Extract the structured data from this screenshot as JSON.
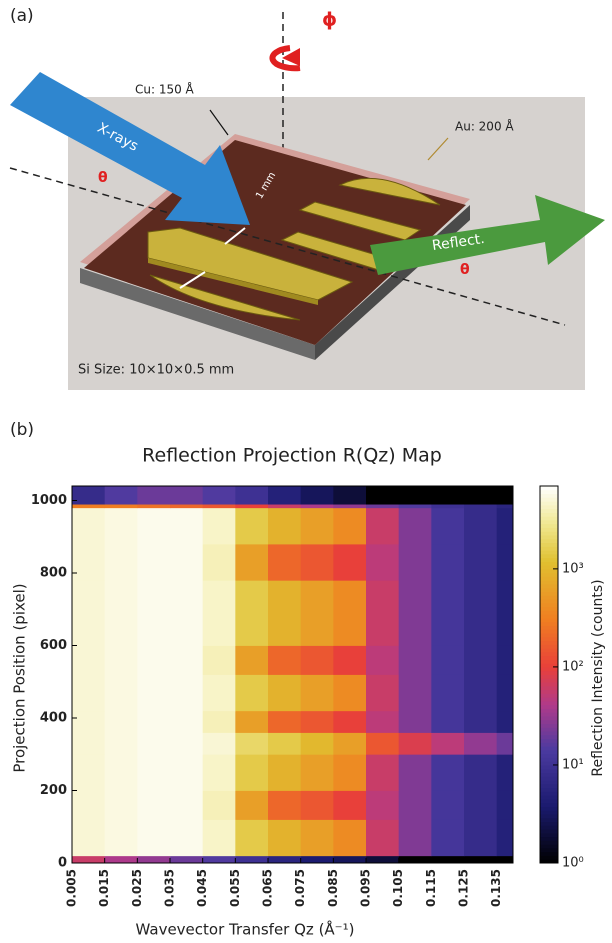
{
  "panel_a": {
    "label": "(a)",
    "phi": "ϕ",
    "cu": "Cu: 150 Å",
    "au": "Au: 200 Å",
    "xrays": "X-rays",
    "reflect": "Reflect.",
    "mm": "1 mm",
    "theta_in": "θ",
    "theta_out": "θ",
    "si_size": "Si Size: 10×10×0.5 mm"
  },
  "chart_data": {
    "type": "heatmap",
    "panel_label": "(b)",
    "title": "Reflection Projection R(Qz) Map",
    "x_label": "Wavevector Transfer Qz (Å⁻¹)",
    "y_label": "Projection Position (pixel)",
    "colorbar_label": "Reflection Intensity (counts)",
    "log_color": true,
    "x_edges": [
      0.005,
      0.015,
      0.025,
      0.035,
      0.045,
      0.055,
      0.065,
      0.075,
      0.085,
      0.095,
      0.105,
      0.115,
      0.125,
      0.135,
      0.14
    ],
    "y_edges": [
      0,
      20,
      120,
      200,
      300,
      360,
      420,
      520,
      600,
      780,
      880,
      980,
      990,
      1040
    ],
    "z": [
      [
        60,
        40,
        30,
        20,
        15,
        10,
        6,
        4,
        3,
        2,
        1,
        1,
        1,
        1
      ],
      [
        5000,
        5500,
        6000,
        6000,
        4500,
        1500,
        900,
        600,
        400,
        60,
        25,
        12,
        8,
        5
      ],
      [
        5000,
        5500,
        6000,
        6000,
        4000,
        600,
        200,
        150,
        100,
        50,
        25,
        12,
        8,
        5
      ],
      [
        5000,
        5500,
        6000,
        6000,
        4500,
        1500,
        900,
        600,
        400,
        60,
        25,
        12,
        8,
        5
      ],
      [
        5000,
        5500,
        6000,
        6000,
        5000,
        2000,
        1500,
        1000,
        600,
        150,
        80,
        50,
        30,
        20
      ],
      [
        5000,
        5500,
        6000,
        6000,
        4000,
        600,
        200,
        150,
        100,
        50,
        25,
        12,
        8,
        5
      ],
      [
        5000,
        5500,
        6000,
        6000,
        4500,
        1500,
        900,
        600,
        400,
        60,
        25,
        12,
        8,
        5
      ],
      [
        5000,
        5500,
        6000,
        6000,
        4000,
        600,
        200,
        150,
        100,
        50,
        25,
        12,
        8,
        5
      ],
      [
        5000,
        5500,
        6000,
        6000,
        4500,
        1500,
        900,
        600,
        400,
        60,
        25,
        12,
        8,
        5
      ],
      [
        5000,
        5500,
        6000,
        6000,
        4000,
        600,
        200,
        150,
        100,
        50,
        25,
        12,
        8,
        5
      ],
      [
        5000,
        5500,
        6000,
        6000,
        4500,
        1500,
        900,
        600,
        400,
        60,
        25,
        12,
        8,
        5
      ],
      [
        300,
        300,
        250,
        200,
        150,
        100,
        60,
        40,
        30,
        20,
        15,
        10,
        8,
        6
      ],
      [
        8,
        15,
        20,
        20,
        15,
        10,
        5,
        3,
        2,
        1,
        1,
        1,
        1,
        1
      ]
    ],
    "xlim": [
      0.005,
      0.14
    ],
    "ylim": [
      0,
      1040
    ],
    "zlim": [
      1,
      7000
    ],
    "xticks": [
      0.005,
      0.015,
      0.025,
      0.035,
      0.045,
      0.055,
      0.065,
      0.075,
      0.085,
      0.095,
      0.105,
      0.115,
      0.125,
      0.135
    ],
    "yticks": [
      0,
      200,
      400,
      600,
      800,
      1000
    ],
    "zticks": [
      {
        "value": 1,
        "label": "10⁰"
      },
      {
        "value": 10,
        "label": "10¹"
      },
      {
        "value": 100,
        "label": "10²"
      },
      {
        "value": 1000,
        "label": "10³"
      }
    ]
  }
}
